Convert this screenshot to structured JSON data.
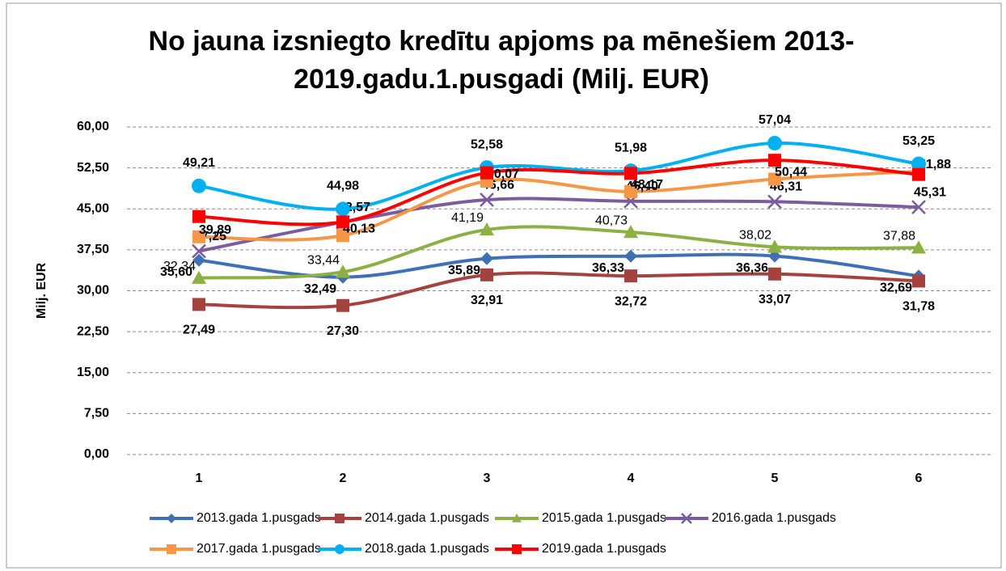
{
  "chart_data": {
    "type": "line",
    "title": "No jauna izsniegto kredītu apjoms pa mēnešiem 2013-2019.gadu.1.pusgadi (Milj. EUR)",
    "y_label": "Milj. EUR",
    "categories": [
      "1",
      "2",
      "3",
      "4",
      "5",
      "6"
    ],
    "ylim": [
      0,
      60
    ],
    "yticks": [
      {
        "value": 0,
        "label": "0,00"
      },
      {
        "value": 7.5,
        "label": "7,50"
      },
      {
        "value": 15,
        "label": "15,00"
      },
      {
        "value": 22.5,
        "label": "22,50"
      },
      {
        "value": 30,
        "label": "30,00"
      },
      {
        "value": 37.5,
        "label": "37,50"
      },
      {
        "value": 45,
        "label": "45,00"
      },
      {
        "value": 52.5,
        "label": "52,50"
      },
      {
        "value": 60,
        "label": "60,00"
      }
    ],
    "grid": true,
    "smooth": true,
    "legend": "bottom",
    "series": [
      {
        "name": "2013.gada 1.pusgads",
        "color": "#3f6fb5",
        "marker": "diamond",
        "values": [
          35.6,
          32.49,
          35.89,
          36.33,
          36.36,
          32.69
        ],
        "value_labels": [
          "35,60",
          "32,49",
          "35,89",
          "36,33",
          "36,36",
          "32,69"
        ]
      },
      {
        "name": "2014.gada 1.pusgads",
        "color": "#a5423f",
        "marker": "square",
        "values": [
          27.49,
          27.3,
          32.91,
          32.72,
          33.07,
          31.78
        ],
        "value_labels": [
          "27,49",
          "27,30",
          "32,91",
          "32,72",
          "33,07",
          "31,78"
        ]
      },
      {
        "name": "2015.gada 1.pusgads",
        "color": "#8cb043",
        "marker": "triangle",
        "values": [
          32.34,
          33.44,
          41.19,
          40.73,
          38.02,
          37.88
        ],
        "value_labels": [
          "32,34",
          "33,44",
          "41,19",
          "40,73",
          "38,02",
          "37,88"
        ]
      },
      {
        "name": "2016.gada 1.pusgads",
        "color": "#7b5c9e",
        "marker": "x",
        "values": [
          37.25,
          42.57,
          46.66,
          46.4,
          46.31,
          45.31
        ],
        "value_labels": [
          "37,25",
          "42,57",
          "46,66",
          "46,40",
          "46,31",
          "45,31"
        ]
      },
      {
        "name": "2017.gada 1.pusgads",
        "color": "#f79646",
        "marker": "square",
        "values": [
          39.89,
          40.13,
          50.07,
          48.17,
          50.44,
          51.88
        ],
        "value_labels": [
          "39,89",
          "40,13",
          "50,07",
          "48,17",
          "50,44",
          "51,88"
        ]
      },
      {
        "name": "2018.gada 1.pusgads",
        "color": "#00b0f0",
        "marker": "circle",
        "values": [
          49.21,
          44.98,
          52.58,
          51.98,
          57.04,
          53.25
        ],
        "value_labels": [
          "49,21",
          "44,98",
          "52,58",
          "51,98",
          "57,04",
          "53,25"
        ]
      },
      {
        "name": "2019.gada 1.pusgads",
        "color": "#ff0000",
        "marker": "square",
        "values": [
          43.6,
          42.6,
          51.6,
          51.5,
          53.9,
          51.3
        ]
      }
    ]
  }
}
